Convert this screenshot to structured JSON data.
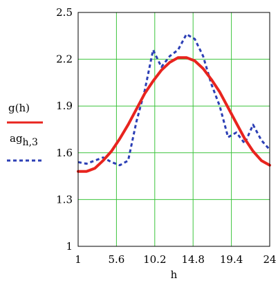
{
  "chart_data": {
    "type": "line",
    "xlabel": "h",
    "ylabel": "",
    "title": "",
    "xlim": [
      1,
      24
    ],
    "ylim": [
      1,
      2.5
    ],
    "xticks": [
      "1",
      "5.6",
      "10.2",
      "14.8",
      "19.4",
      "24"
    ],
    "yticks": [
      "1",
      "1.3",
      "1.6",
      "1.9",
      "2.2",
      "2.5"
    ],
    "xtick_values": [
      1,
      5.6,
      10.2,
      14.8,
      19.4,
      24
    ],
    "ytick_values": [
      1,
      1.3,
      1.6,
      1.9,
      2.2,
      2.5
    ],
    "grid": true,
    "legend_placement": "left",
    "series": [
      {
        "name": "g(h)",
        "color": "#e8241e",
        "style": "solid",
        "x": [
          1,
          2,
          3,
          4,
          5,
          6,
          7,
          8,
          9,
          10,
          11,
          12,
          13,
          14,
          15,
          16,
          17,
          18,
          19,
          20,
          21,
          22,
          23,
          24
        ],
        "y": [
          1.48,
          1.48,
          1.5,
          1.55,
          1.61,
          1.69,
          1.78,
          1.88,
          1.98,
          2.06,
          2.13,
          2.18,
          2.21,
          2.21,
          2.19,
          2.14,
          2.07,
          1.99,
          1.89,
          1.79,
          1.69,
          1.61,
          1.55,
          1.52
        ]
      },
      {
        "name": "ag",
        "name_subscript": "h,3",
        "color": "#2c3fb5",
        "style": "dashed",
        "x": [
          1,
          2,
          3,
          4,
          5,
          6,
          7,
          8,
          9,
          10,
          11,
          12,
          13,
          14,
          15,
          16,
          17,
          18,
          19,
          20,
          21,
          22,
          23,
          24
        ],
        "y": [
          1.54,
          1.53,
          1.55,
          1.57,
          1.54,
          1.52,
          1.55,
          1.8,
          2.0,
          2.26,
          2.15,
          2.22,
          2.26,
          2.36,
          2.33,
          2.22,
          2.04,
          1.9,
          1.7,
          1.73,
          1.66,
          1.78,
          1.68,
          1.62
        ]
      }
    ]
  }
}
